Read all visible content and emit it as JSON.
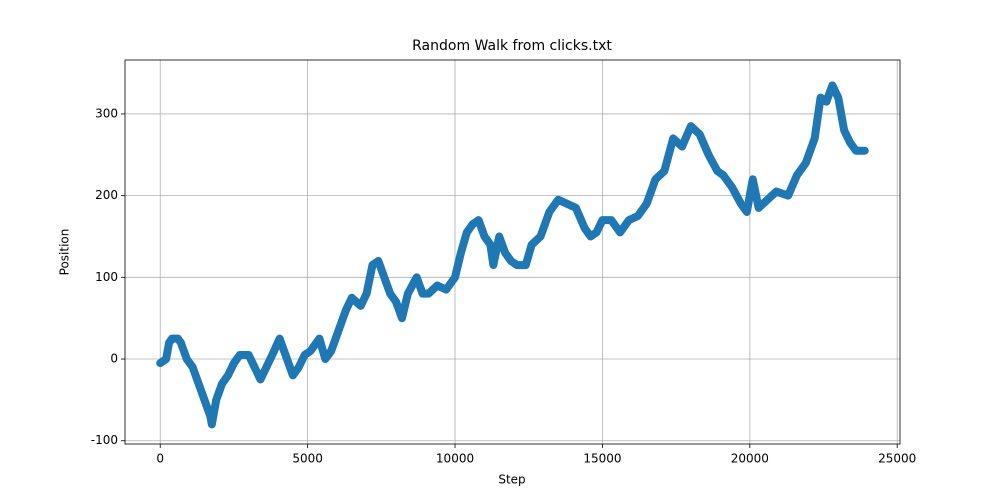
{
  "chart_data": {
    "type": "line",
    "title": "Random Walk from clicks.txt",
    "x_label": "Step",
    "y_label": "Position",
    "x": [
      0,
      200,
      300,
      400,
      600,
      700,
      900,
      1100,
      1300,
      1500,
      1700,
      1750,
      1900,
      2100,
      2300,
      2500,
      2700,
      3000,
      3200,
      3400,
      3600,
      3800,
      4050,
      4300,
      4500,
      4700,
      4900,
      5100,
      5400,
      5600,
      5800,
      6000,
      6300,
      6500,
      6800,
      7000,
      7200,
      7400,
      7600,
      7800,
      8000,
      8200,
      8400,
      8700,
      8900,
      9100,
      9400,
      9700,
      10000,
      10200,
      10400,
      10600,
      10800,
      11000,
      11200,
      11300,
      11500,
      11700,
      11900,
      12100,
      12400,
      12600,
      12900,
      13200,
      13500,
      13800,
      14100,
      14400,
      14600,
      14800,
      15000,
      15300,
      15600,
      15900,
      16200,
      16500,
      16800,
      17100,
      17400,
      17700,
      18000,
      18300,
      18600,
      18900,
      19100,
      19400,
      19700,
      19900,
      20000,
      20100,
      20300,
      20600,
      20900,
      21300,
      21600,
      21900,
      22200,
      22400,
      22600,
      22800,
      23000,
      23200,
      23400,
      23600,
      23900
    ],
    "series": [
      {
        "color": "#1f77b4",
        "values": [
          -5,
          0,
          20,
          25,
          25,
          20,
          0,
          -10,
          -30,
          -50,
          -70,
          -80,
          -50,
          -30,
          -20,
          -5,
          5,
          5,
          -10,
          -25,
          -10,
          5,
          25,
          0,
          -20,
          -10,
          5,
          10,
          25,
          0,
          10,
          30,
          60,
          75,
          65,
          80,
          115,
          120,
          100,
          80,
          70,
          50,
          80,
          100,
          80,
          80,
          90,
          85,
          100,
          130,
          155,
          165,
          170,
          150,
          140,
          115,
          150,
          130,
          120,
          115,
          115,
          140,
          150,
          180,
          195,
          190,
          185,
          160,
          150,
          155,
          170,
          170,
          155,
          170,
          175,
          190,
          220,
          230,
          270,
          260,
          285,
          275,
          250,
          230,
          225,
          210,
          190,
          180,
          200,
          220,
          185,
          195,
          205,
          200,
          225,
          240,
          270,
          320,
          315,
          335,
          320,
          280,
          265,
          255,
          255
        ]
      }
    ],
    "xlim": [
      -1195,
      25095
    ],
    "ylim": [
      -104,
      366
    ],
    "xticks": [
      0,
      5000,
      10000,
      15000,
      20000,
      25000
    ],
    "yticks": [
      -100,
      0,
      100,
      200,
      300
    ],
    "grid": true
  }
}
